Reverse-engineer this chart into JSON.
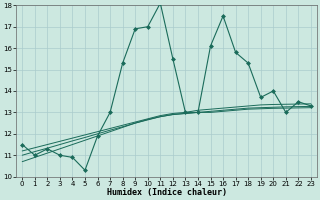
{
  "xlabel": "Humidex (Indice chaleur)",
  "background_color": "#cce8e0",
  "grid_color": "#aacccc",
  "line_color": "#1a6b5a",
  "x_data": [
    0,
    1,
    2,
    3,
    4,
    5,
    6,
    7,
    8,
    9,
    10,
    11,
    12,
    13,
    14,
    15,
    16,
    17,
    18,
    19,
    20,
    21,
    22,
    23
  ],
  "y_main": [
    11.5,
    11.0,
    11.3,
    11.0,
    10.9,
    10.3,
    11.9,
    13.0,
    15.3,
    16.9,
    17.0,
    18.1,
    15.5,
    13.0,
    13.0,
    16.1,
    17.5,
    15.8,
    15.3,
    13.7,
    14.0,
    13.0,
    13.5,
    13.3
  ],
  "y_line1": [
    11.2,
    11.35,
    11.5,
    11.65,
    11.8,
    11.95,
    12.1,
    12.25,
    12.4,
    12.55,
    12.7,
    12.85,
    12.95,
    13.0,
    13.1,
    13.15,
    13.2,
    13.25,
    13.3,
    13.35,
    13.37,
    13.38,
    13.39,
    13.4
  ],
  "y_line2": [
    11.0,
    11.17,
    11.33,
    11.5,
    11.67,
    11.83,
    12.0,
    12.17,
    12.33,
    12.5,
    12.67,
    12.8,
    12.9,
    12.95,
    13.0,
    13.05,
    13.1,
    13.15,
    13.2,
    13.22,
    13.24,
    13.26,
    13.27,
    13.28
  ],
  "y_line3": [
    10.7,
    10.9,
    11.1,
    11.3,
    11.5,
    11.7,
    11.9,
    12.1,
    12.3,
    12.5,
    12.65,
    12.8,
    12.9,
    12.95,
    13.0,
    13.0,
    13.05,
    13.1,
    13.15,
    13.17,
    13.19,
    13.2,
    13.21,
    13.22
  ],
  "ylim": [
    10,
    18
  ],
  "xlim": [
    -0.5,
    23.5
  ],
  "yticks": [
    10,
    11,
    12,
    13,
    14,
    15,
    16,
    17,
    18
  ],
  "xticks": [
    0,
    1,
    2,
    3,
    4,
    5,
    6,
    7,
    8,
    9,
    10,
    11,
    12,
    13,
    14,
    15,
    16,
    17,
    18,
    19,
    20,
    21,
    22,
    23
  ]
}
